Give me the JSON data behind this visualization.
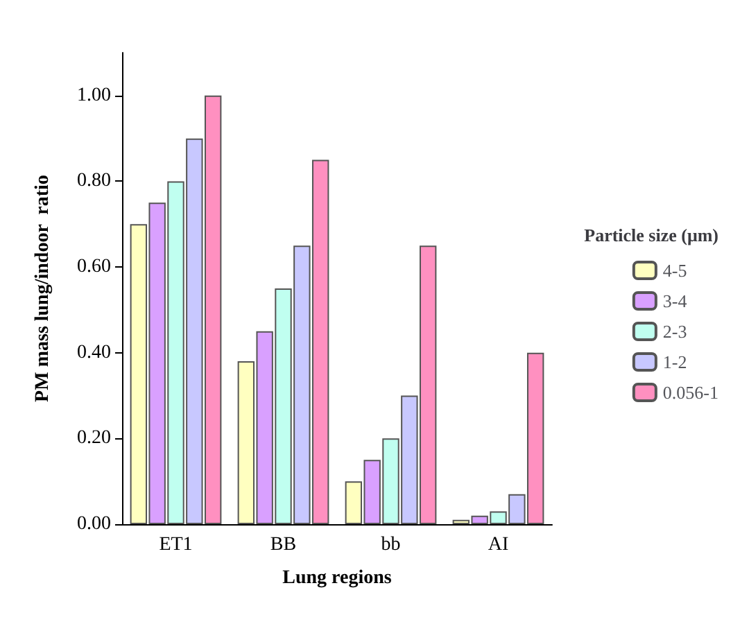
{
  "chart_data": {
    "type": "bar",
    "xlabel": "Lung regions",
    "ylabel": "PM mass lung/indoor  ratio",
    "legend_title": "Particle size (μm)",
    "categories": [
      "ET1",
      "BB",
      "bb",
      "AI"
    ],
    "series": [
      {
        "name": "4-5",
        "color": "#ffffc0",
        "values": [
          0.7,
          0.38,
          0.1,
          0.01
        ]
      },
      {
        "name": "3-4",
        "color": "#d9a0ff",
        "values": [
          0.75,
          0.45,
          0.15,
          0.02
        ]
      },
      {
        "name": "2-3",
        "color": "#c0fff0",
        "values": [
          0.8,
          0.55,
          0.2,
          0.03
        ]
      },
      {
        "name": "1-2",
        "color": "#c8c8ff",
        "values": [
          0.9,
          0.65,
          0.3,
          0.07
        ]
      },
      {
        "name": "0.056-1",
        "color": "#ff90c0",
        "values": [
          1.0,
          0.85,
          0.65,
          0.4
        ]
      }
    ],
    "ylim": [
      0,
      1.1
    ],
    "yticks": [
      {
        "value": 0,
        "label": "0.00"
      },
      {
        "value": 0.2,
        "label": "0.20"
      },
      {
        "value": 0.4,
        "label": "0.40"
      },
      {
        "value": 0.6,
        "label": "0.60"
      },
      {
        "value": 0.8,
        "label": "0.80"
      },
      {
        "value": 1,
        "label": "1.00"
      }
    ],
    "grid": false,
    "legend": "right"
  }
}
